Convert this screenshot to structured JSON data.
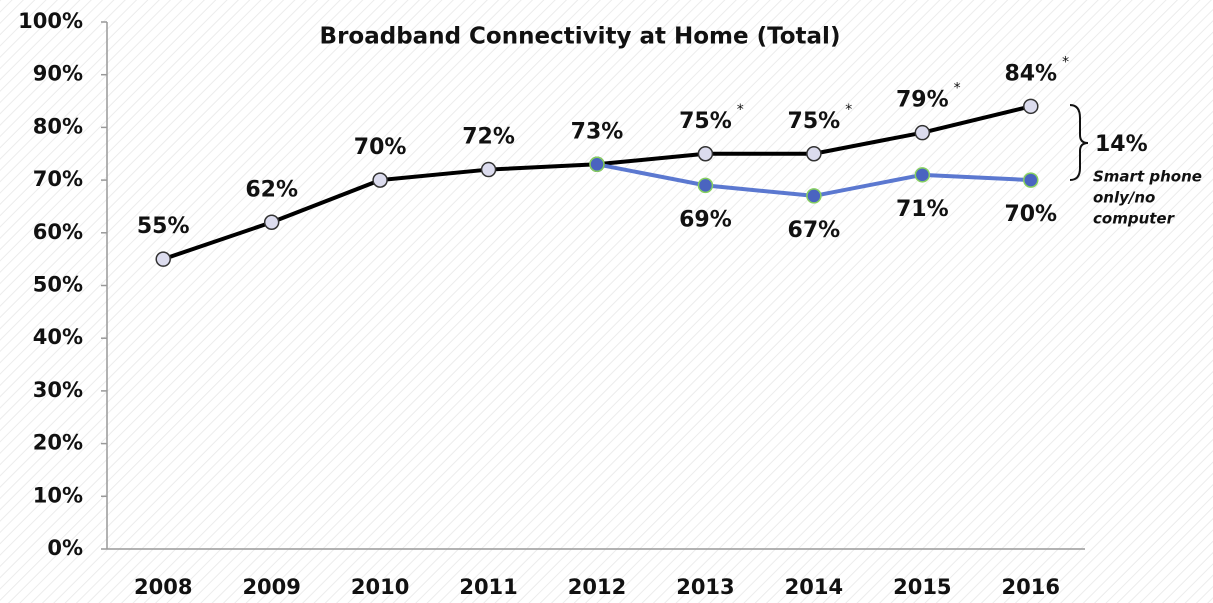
{
  "chart_data": {
    "type": "line",
    "title": "Broadband Connectivity at Home (Total)",
    "categories": [
      "2008",
      "2009",
      "2010",
      "2011",
      "2012",
      "2013",
      "2014",
      "2015",
      "2016"
    ],
    "series": [
      {
        "color": "#000000",
        "marker_fill": "#dcdcee",
        "marker_stroke": "#333333",
        "values": [
          55,
          62,
          70,
          72,
          73,
          75,
          75,
          79,
          84
        ],
        "value_labels": [
          "55%",
          "62%",
          "70%",
          "72%",
          "73%",
          "75%",
          "75%",
          "79%",
          "84%"
        ],
        "footnote_marks": [
          null,
          null,
          null,
          null,
          null,
          "*",
          "*",
          "*",
          "*"
        ]
      },
      {
        "color": "#5b78d0",
        "marker_fill": "#4a64c0",
        "marker_stroke": "#86d060",
        "values": [
          null,
          null,
          null,
          null,
          73,
          69,
          67,
          71,
          70
        ],
        "value_labels": [
          null,
          null,
          null,
          null,
          null,
          "69%",
          "67%",
          "71%",
          "70%"
        ]
      }
    ],
    "ylim": [
      0,
      100
    ],
    "yticks": [
      {
        "value": 0,
        "label": "0%"
      },
      {
        "value": 10,
        "label": "10%"
      },
      {
        "value": 20,
        "label": "20%"
      },
      {
        "value": 30,
        "label": "30%"
      },
      {
        "value": 40,
        "label": "40%"
      },
      {
        "value": 50,
        "label": "50%"
      },
      {
        "value": 60,
        "label": "60%"
      },
      {
        "value": 70,
        "label": "70%"
      },
      {
        "value": 80,
        "label": "80%"
      },
      {
        "value": 90,
        "label": "90%"
      },
      {
        "value": 100,
        "label": "100%"
      }
    ],
    "grid": false,
    "gap_annotation": {
      "value": 14,
      "label": "14%",
      "note": [
        "Smart phone",
        "only/no",
        "computer"
      ]
    }
  }
}
